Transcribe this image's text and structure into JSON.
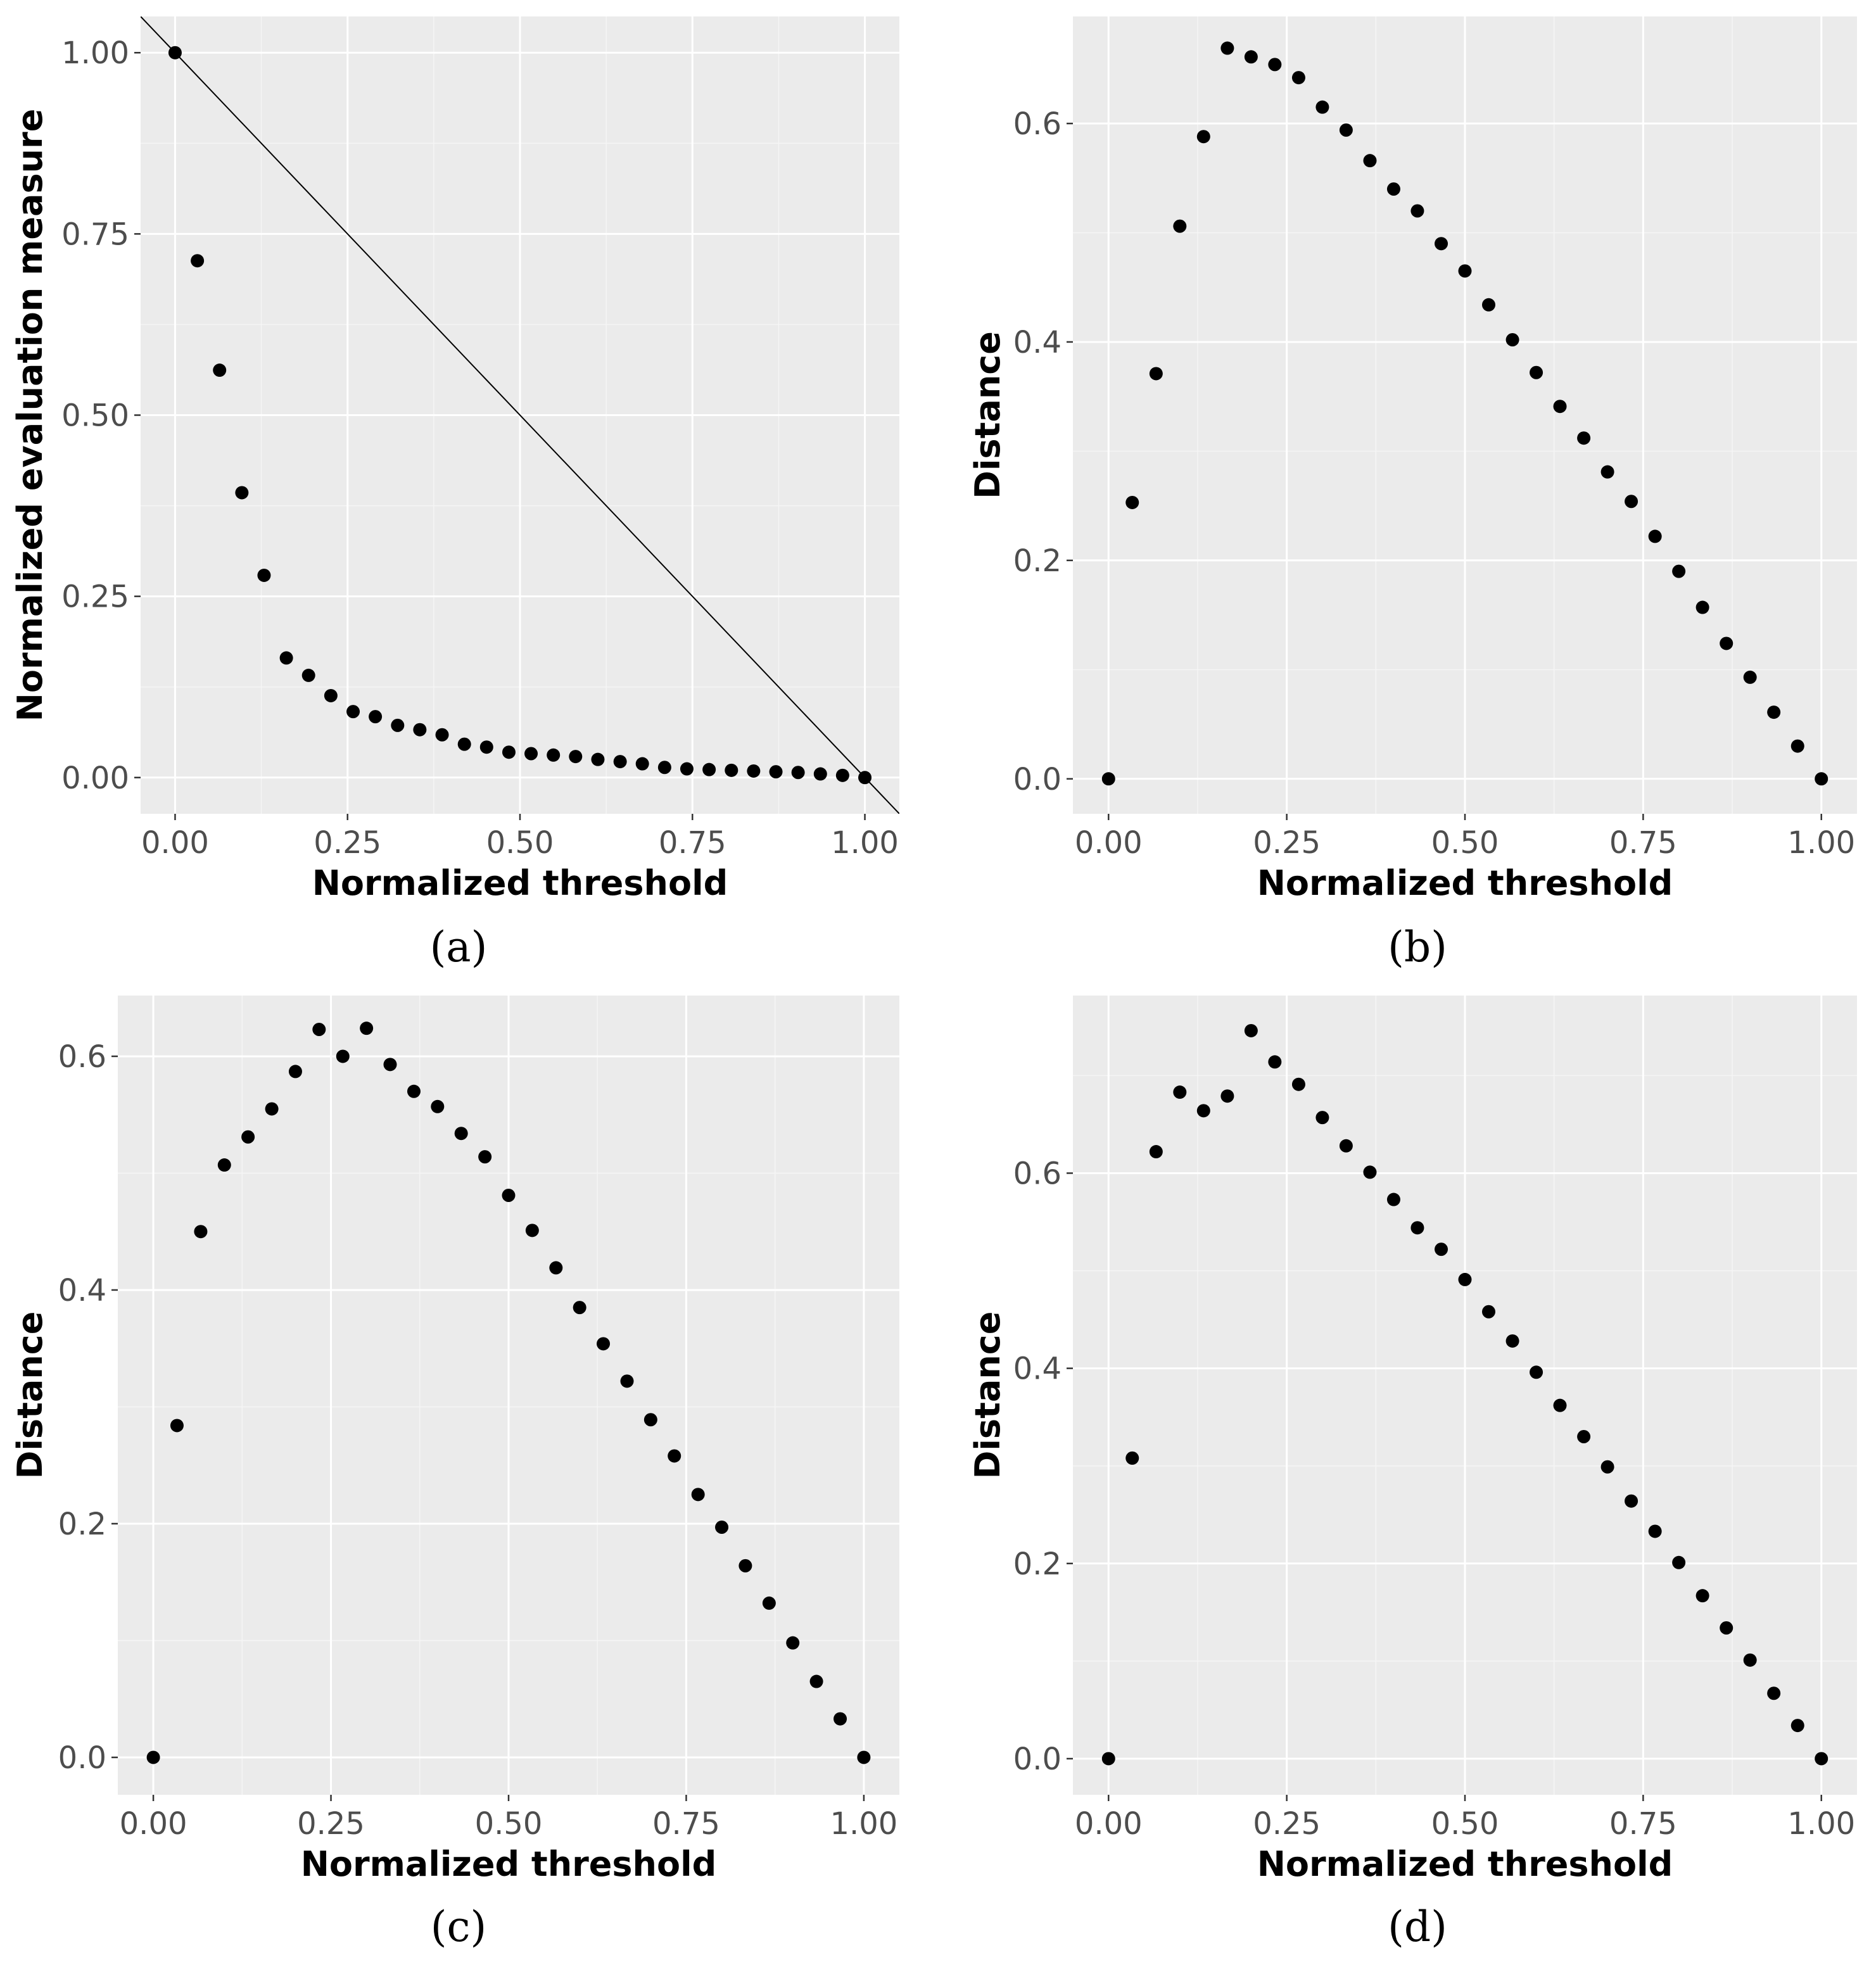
{
  "chart_data": [
    {
      "type": "scatter",
      "panel": "a",
      "caption": "(a)",
      "xlabel": "Normalized threshold",
      "ylabel": "Normalized evaluation measure",
      "xlim": [
        -0.05,
        1.05
      ],
      "ylim": [
        -0.05,
        1.05
      ],
      "xticks": [
        0.0,
        0.25,
        0.5,
        0.75,
        1.0
      ],
      "xtick_labels": [
        "0.00",
        "0.25",
        "0.50",
        "0.75",
        "1.00"
      ],
      "yticks": [
        0.0,
        0.25,
        0.5,
        0.75,
        1.0
      ],
      "ytick_labels": [
        "0.00",
        "0.25",
        "0.50",
        "0.75",
        "1.00"
      ],
      "grid": true,
      "reference_line": {
        "from": [
          0,
          1
        ],
        "to": [
          1,
          0
        ]
      },
      "x": [
        0.0,
        0.0323,
        0.0645,
        0.0968,
        0.129,
        0.1613,
        0.1935,
        0.2258,
        0.2581,
        0.2903,
        0.3226,
        0.3548,
        0.3871,
        0.4194,
        0.4516,
        0.4839,
        0.5161,
        0.5484,
        0.5806,
        0.6129,
        0.6452,
        0.6774,
        0.7097,
        0.7419,
        0.7742,
        0.8065,
        0.8387,
        0.871,
        0.9032,
        0.9355,
        0.9677,
        1.0
      ],
      "y": [
        1.0,
        0.713,
        0.562,
        0.393,
        0.279,
        0.165,
        0.141,
        0.113,
        0.091,
        0.084,
        0.072,
        0.066,
        0.059,
        0.046,
        0.042,
        0.035,
        0.033,
        0.031,
        0.029,
        0.025,
        0.022,
        0.019,
        0.014,
        0.012,
        0.011,
        0.01,
        0.009,
        0.008,
        0.007,
        0.005,
        0.003,
        0.0
      ]
    },
    {
      "type": "scatter",
      "panel": "b",
      "caption": "(b)",
      "xlabel": "Normalized threshold",
      "ylabel": "Distance",
      "xlim": [
        -0.05,
        1.05
      ],
      "ylim": [
        -0.032,
        0.698
      ],
      "xticks": [
        0.0,
        0.25,
        0.5,
        0.75,
        1.0
      ],
      "xtick_labels": [
        "0.00",
        "0.25",
        "0.50",
        "0.75",
        "1.00"
      ],
      "yticks": [
        0.0,
        0.2,
        0.4,
        0.6
      ],
      "ytick_labels": [
        "0.0",
        "0.2",
        "0.4",
        "0.6"
      ],
      "grid": true,
      "x": [
        0.0,
        0.0333,
        0.0667,
        0.1,
        0.1333,
        0.1667,
        0.2,
        0.2333,
        0.2667,
        0.3,
        0.3333,
        0.3667,
        0.4,
        0.4333,
        0.4667,
        0.5,
        0.5333,
        0.5667,
        0.6,
        0.6333,
        0.6667,
        0.7,
        0.7333,
        0.7667,
        0.8,
        0.8333,
        0.8667,
        0.9,
        0.9333,
        0.9667,
        1.0
      ],
      "y": [
        0.0,
        0.253,
        0.371,
        0.506,
        0.588,
        0.669,
        0.661,
        0.654,
        0.642,
        0.615,
        0.594,
        0.566,
        0.54,
        0.52,
        0.49,
        0.465,
        0.434,
        0.402,
        0.372,
        0.341,
        0.312,
        0.281,
        0.254,
        0.222,
        0.19,
        0.157,
        0.124,
        0.093,
        0.061,
        0.03,
        0.0
      ]
    },
    {
      "type": "scatter",
      "panel": "c",
      "caption": "(c)",
      "xlabel": "Normalized threshold",
      "ylabel": "Distance",
      "xlim": [
        -0.05,
        1.05
      ],
      "ylim": [
        -0.032,
        0.652
      ],
      "xticks": [
        0.0,
        0.25,
        0.5,
        0.75,
        1.0
      ],
      "xtick_labels": [
        "0.00",
        "0.25",
        "0.50",
        "0.75",
        "1.00"
      ],
      "yticks": [
        0.0,
        0.2,
        0.4,
        0.6
      ],
      "ytick_labels": [
        "0.0",
        "0.2",
        "0.4",
        "0.6"
      ],
      "grid": true,
      "x": [
        0.0,
        0.0333,
        0.0667,
        0.1,
        0.1333,
        0.1667,
        0.2,
        0.2333,
        0.2667,
        0.3,
        0.3333,
        0.3667,
        0.4,
        0.4333,
        0.4667,
        0.5,
        0.5333,
        0.5667,
        0.6,
        0.6333,
        0.6667,
        0.7,
        0.7333,
        0.7667,
        0.8,
        0.8333,
        0.8667,
        0.9,
        0.9333,
        0.9667,
        1.0
      ],
      "y": [
        0.0,
        0.284,
        0.45,
        0.507,
        0.531,
        0.555,
        0.587,
        0.623,
        0.6,
        0.624,
        0.593,
        0.57,
        0.557,
        0.534,
        0.514,
        0.481,
        0.451,
        0.419,
        0.385,
        0.354,
        0.322,
        0.289,
        0.258,
        0.225,
        0.197,
        0.164,
        0.132,
        0.098,
        0.065,
        0.033,
        0.0
      ]
    },
    {
      "type": "scatter",
      "panel": "d",
      "caption": "(d)",
      "xlabel": "Normalized threshold",
      "ylabel": "Distance",
      "xlim": [
        -0.05,
        1.05
      ],
      "ylim": [
        -0.037,
        0.782
      ],
      "xticks": [
        0.0,
        0.25,
        0.5,
        0.75,
        1.0
      ],
      "xtick_labels": [
        "0.00",
        "0.25",
        "0.50",
        "0.75",
        "1.00"
      ],
      "yticks": [
        0.0,
        0.2,
        0.4,
        0.6
      ],
      "ytick_labels": [
        "0.0",
        "0.2",
        "0.4",
        "0.6"
      ],
      "grid": true,
      "x": [
        0.0,
        0.0333,
        0.0667,
        0.1,
        0.1333,
        0.1667,
        0.2,
        0.2333,
        0.2667,
        0.3,
        0.3333,
        0.3667,
        0.4,
        0.4333,
        0.4667,
        0.5,
        0.5333,
        0.5667,
        0.6,
        0.6333,
        0.6667,
        0.7,
        0.7333,
        0.7667,
        0.8,
        0.8333,
        0.8667,
        0.9,
        0.9333,
        0.9667,
        1.0
      ],
      "y": [
        0.0,
        0.308,
        0.622,
        0.683,
        0.664,
        0.679,
        0.746,
        0.714,
        0.691,
        0.657,
        0.628,
        0.601,
        0.573,
        0.544,
        0.522,
        0.491,
        0.458,
        0.428,
        0.396,
        0.362,
        0.33,
        0.299,
        0.264,
        0.233,
        0.201,
        0.167,
        0.134,
        0.101,
        0.067,
        0.034,
        0.0
      ]
    }
  ]
}
